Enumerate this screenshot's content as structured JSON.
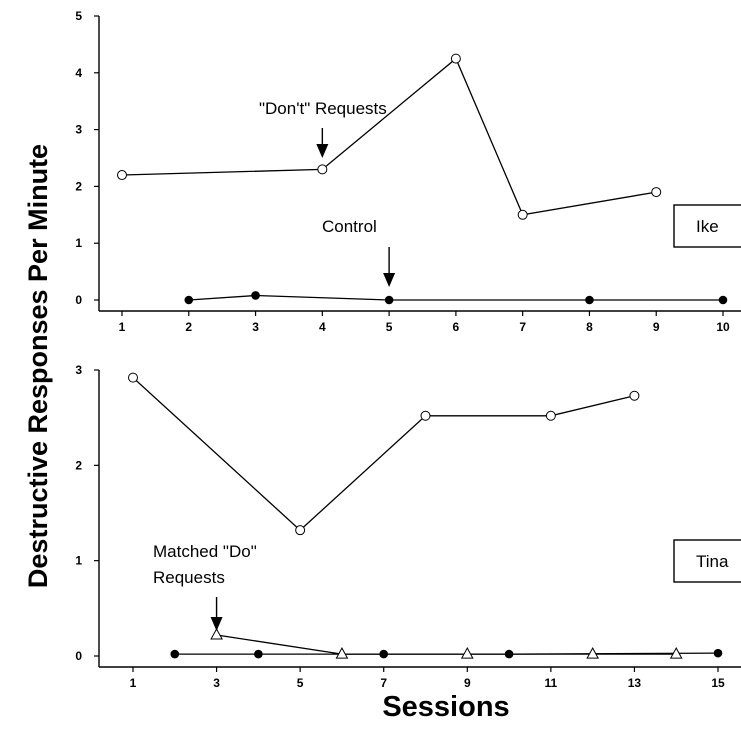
{
  "figure": {
    "ylabel": "Destructive Responses Per Minute",
    "xlabel": "Sessions"
  },
  "chart_data": [
    {
      "type": "line",
      "participant": "Ike",
      "ylim": [
        0,
        5
      ],
      "xlim": [
        0.5,
        10.3
      ],
      "y_ticks": [
        0,
        1,
        2,
        3,
        4,
        5
      ],
      "x_ticks": [
        1,
        2,
        3,
        4,
        5,
        6,
        7,
        8,
        9,
        10
      ],
      "series": [
        {
          "marker": "open-circle",
          "points": [
            [
              1,
              2.2
            ],
            [
              4,
              2.3
            ],
            [
              6,
              4.25
            ],
            [
              7,
              1.5
            ],
            [
              9,
              1.9
            ]
          ]
        },
        {
          "marker": "filled-circle",
          "points": [
            [
              2,
              0
            ],
            [
              3,
              0.08
            ],
            [
              5,
              0
            ],
            [
              8,
              0
            ],
            [
              10,
              0
            ]
          ]
        }
      ],
      "annotations": [
        {
          "lines": [
            "\"Don't\" Requests"
          ],
          "x": 4,
          "y": 2.3
        },
        {
          "lines": [
            "Control"
          ],
          "x": 5,
          "y": 0
        }
      ]
    },
    {
      "type": "line",
      "participant": "Tina",
      "ylim": [
        0,
        3
      ],
      "xlim": [
        0.25,
        15.5
      ],
      "y_ticks": [
        0,
        1,
        2,
        3
      ],
      "x_ticks": [
        1,
        3,
        5,
        7,
        9,
        11,
        13,
        15
      ],
      "series": [
        {
          "marker": "open-circle",
          "points": [
            [
              1,
              2.92
            ],
            [
              5,
              1.32
            ],
            [
              8,
              2.52
            ],
            [
              11,
              2.52
            ],
            [
              13,
              2.73
            ]
          ]
        },
        {
          "marker": "filled-circle",
          "points": [
            [
              2,
              0.02
            ],
            [
              4,
              0.02
            ],
            [
              7,
              0.02
            ],
            [
              10,
              0.02
            ],
            [
              15,
              0.03
            ]
          ]
        },
        {
          "marker": "open-triangle",
          "points": [
            [
              3,
              0.22
            ],
            [
              6,
              0.02
            ],
            [
              9,
              0.02
            ],
            [
              12,
              0.02
            ],
            [
              14,
              0.02
            ]
          ]
        }
      ],
      "annotations": [
        {
          "lines": [
            "Matched \"Do\"",
            "Requests"
          ],
          "x": 3,
          "y": 0.22
        }
      ]
    }
  ]
}
